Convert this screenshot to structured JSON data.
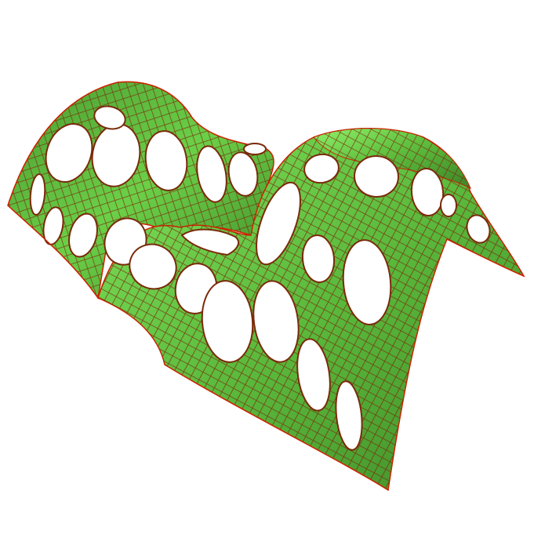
{
  "scene": {
    "background": "#ffffff",
    "surface_colors": {
      "light": "#7fe25a",
      "mid": "#58b63a",
      "dark": "#3f8a28",
      "mesh": "#7a2a0a",
      "edge": "#cc2200",
      "hole_fill": "#ffffff"
    }
  }
}
